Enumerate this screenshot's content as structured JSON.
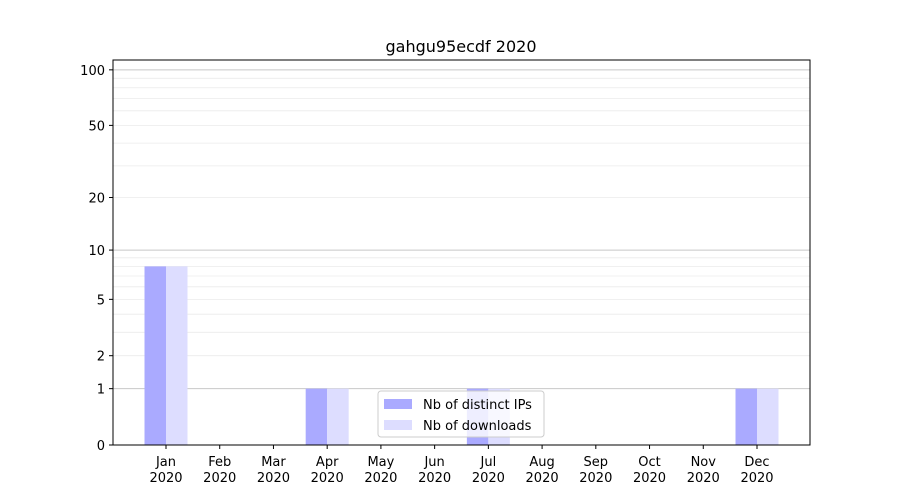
{
  "chart_data": {
    "type": "bar",
    "title": "gahgu95ecdf 2020",
    "xlabel": "",
    "ylabel": "",
    "y_scale": "log(1+y)",
    "ylim": [
      0,
      113
    ],
    "yticks": [
      0,
      1,
      2,
      5,
      10,
      20,
      50,
      100
    ],
    "grid": true,
    "legend_position": "lower center",
    "categories": [
      [
        "Jan",
        "2020"
      ],
      [
        "Feb",
        "2020"
      ],
      [
        "Mar",
        "2020"
      ],
      [
        "Apr",
        "2020"
      ],
      [
        "May",
        "2020"
      ],
      [
        "Jun",
        "2020"
      ],
      [
        "Jul",
        "2020"
      ],
      [
        "Aug",
        "2020"
      ],
      [
        "Sep",
        "2020"
      ],
      [
        "Oct",
        "2020"
      ],
      [
        "Nov",
        "2020"
      ],
      [
        "Dec",
        "2020"
      ]
    ],
    "series": [
      {
        "name": "Nb of distinct IPs",
        "color": "#aaaaff",
        "values": [
          8,
          0,
          0,
          1,
          0,
          0,
          1,
          0,
          0,
          0,
          0,
          1
        ]
      },
      {
        "name": "Nb of downloads",
        "color": "#ddddff",
        "values": [
          8,
          0,
          0,
          1,
          0,
          0,
          1,
          0,
          0,
          0,
          0,
          1
        ]
      }
    ]
  }
}
